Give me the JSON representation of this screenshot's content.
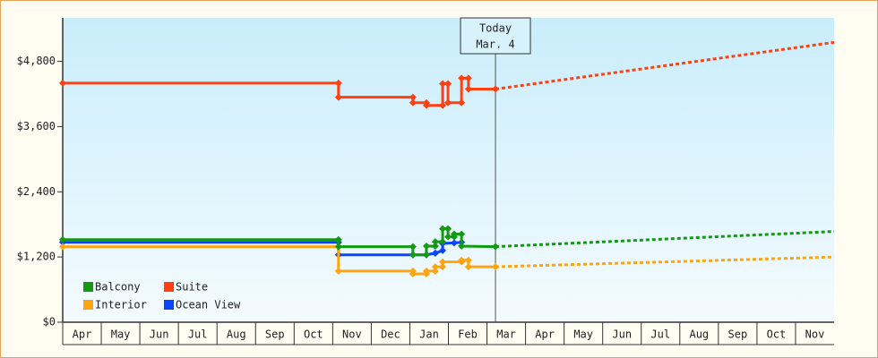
{
  "chart_data": {
    "type": "line",
    "xlim": [
      0,
      20
    ],
    "xticks": [
      {
        "value": 0.5,
        "label": "Apr"
      },
      {
        "value": 1.5,
        "label": "May"
      },
      {
        "value": 2.5,
        "label": "Jun"
      },
      {
        "value": 3.5,
        "label": "Jul"
      },
      {
        "value": 4.5,
        "label": "Aug"
      },
      {
        "value": 5.5,
        "label": "Sep"
      },
      {
        "value": 6.5,
        "label": "Oct"
      },
      {
        "value": 7.5,
        "label": "Nov"
      },
      {
        "value": 8.5,
        "label": "Dec"
      },
      {
        "value": 9.5,
        "label": "Jan"
      },
      {
        "value": 10.5,
        "label": "Feb"
      },
      {
        "value": 11.5,
        "label": "Mar"
      },
      {
        "value": 12.5,
        "label": "Apr"
      },
      {
        "value": 13.5,
        "label": "May"
      },
      {
        "value": 14.5,
        "label": "Jun"
      },
      {
        "value": 15.5,
        "label": "Jul"
      },
      {
        "value": 16.5,
        "label": "Aug"
      },
      {
        "value": 17.5,
        "label": "Sep"
      },
      {
        "value": 18.5,
        "label": "Oct"
      },
      {
        "value": 19.5,
        "label": "Nov"
      }
    ],
    "ylim": [
      0,
      5600
    ],
    "yticks": [
      {
        "value": 0,
        "label": "$0"
      },
      {
        "value": 1200,
        "label": "$1,200"
      },
      {
        "value": 2400,
        "label": "$2,400"
      },
      {
        "value": 3600,
        "label": "$3,600"
      },
      {
        "value": 4800,
        "label": "$4,800"
      }
    ],
    "annotation": {
      "x": 11.22,
      "lines": [
        "Today",
        "Mar. 4"
      ]
    },
    "forecast_x": [
      11.22,
      20
    ],
    "series": [
      {
        "name": "Balcony",
        "color": "#129a12",
        "x": [
          0,
          7.15,
          7.15,
          9.08,
          9.08,
          9.43,
          9.43,
          9.66,
          9.66,
          9.85,
          9.85,
          9.99,
          9.99,
          10.15,
          10.15,
          10.34,
          10.34,
          11.22
        ],
        "values": [
          1520,
          1520,
          1390,
          1390,
          1240,
          1240,
          1400,
          1400,
          1480,
          1480,
          1720,
          1720,
          1570,
          1570,
          1620,
          1620,
          1400,
          1390
        ],
        "forecast_values": [
          1390,
          1670
        ]
      },
      {
        "name": "Suite",
        "color": "#ff4010",
        "x": [
          0,
          7.15,
          7.15,
          9.08,
          9.08,
          9.43,
          9.43,
          9.85,
          9.85,
          9.99,
          9.99,
          10.34,
          10.34,
          10.52,
          10.52,
          11.22
        ],
        "values": [
          4400,
          4400,
          4140,
          4140,
          4040,
          4040,
          3990,
          3990,
          4390,
          4390,
          4040,
          4040,
          4490,
          4490,
          4290,
          4290
        ],
        "forecast_values": [
          4290,
          5150
        ]
      },
      {
        "name": "Interior",
        "color": "#ffa510",
        "x": [
          0,
          7.15,
          7.15,
          9.08,
          9.08,
          9.43,
          9.43,
          9.66,
          9.66,
          9.85,
          9.85,
          10.34,
          10.34,
          10.52,
          10.52,
          11.22
        ],
        "values": [
          1390,
          1390,
          940,
          940,
          890,
          890,
          940,
          940,
          1020,
          1020,
          1110,
          1110,
          1140,
          1140,
          1020,
          1020
        ],
        "forecast_values": [
          1020,
          1200
        ]
      },
      {
        "name": "Ocean View",
        "color": "#0a44ff",
        "x": [
          0,
          7.15,
          7.15,
          9.08,
          9.43,
          9.66,
          9.66,
          9.85,
          9.85,
          10.15,
          10.34
        ],
        "values": [
          1470,
          1470,
          1240,
          1240,
          1240,
          1270,
          1270,
          1320,
          1450,
          1460,
          1470
        ]
      }
    ]
  }
}
